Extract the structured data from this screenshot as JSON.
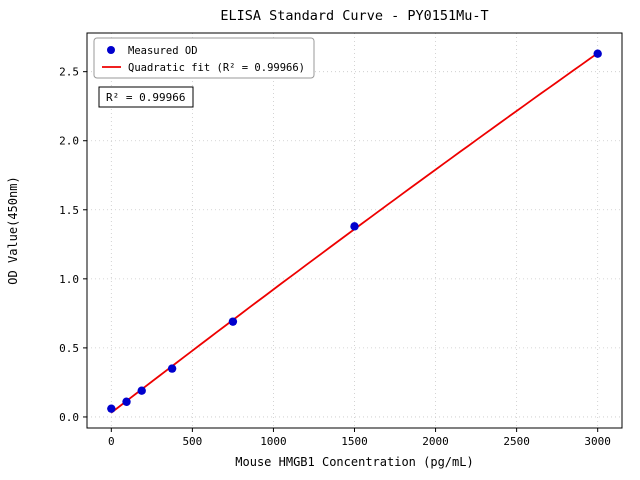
{
  "figure": {
    "background": "#ffffff"
  },
  "chart_data": {
    "type": "scatter",
    "title": "ELISA Standard Curve - PY0151Mu-T",
    "xlabel": "Mouse HMGB1 Concentration (pg/mL)",
    "ylabel": "OD Value(450nm)",
    "series": [
      {
        "name": "Measured OD",
        "kind": "scatter",
        "color": "#0000cd",
        "x": [
          0,
          93.75,
          187.5,
          375,
          750,
          1500,
          3000
        ],
        "y": [
          0.06,
          0.11,
          0.19,
          0.35,
          0.69,
          1.38,
          2.63
        ]
      },
      {
        "name": "Quadratic fit (R² = 0.99966)",
        "kind": "quadratic-fit-line",
        "color": "#ee0000"
      }
    ],
    "xticks": [
      0,
      500,
      1000,
      1500,
      2000,
      2500,
      3000
    ],
    "xtick_labels": [
      "0",
      "500",
      "1000",
      "1500",
      "2000",
      "2500",
      "3000"
    ],
    "yticks": [
      0,
      0.5,
      1.0,
      1.5,
      2.0,
      2.5
    ],
    "ytick_labels": [
      "0.0",
      "0.5",
      "1.0",
      "1.5",
      "2.0",
      "2.5"
    ],
    "xlim": [
      -150,
      3150
    ],
    "ylim": [
      -0.08,
      2.78
    ],
    "grid": true,
    "grid_color": "#c9c9c9",
    "legend_position": "upper-left",
    "annotation": {
      "text": "R² = 0.99966"
    },
    "r_squared": 0.99966
  }
}
